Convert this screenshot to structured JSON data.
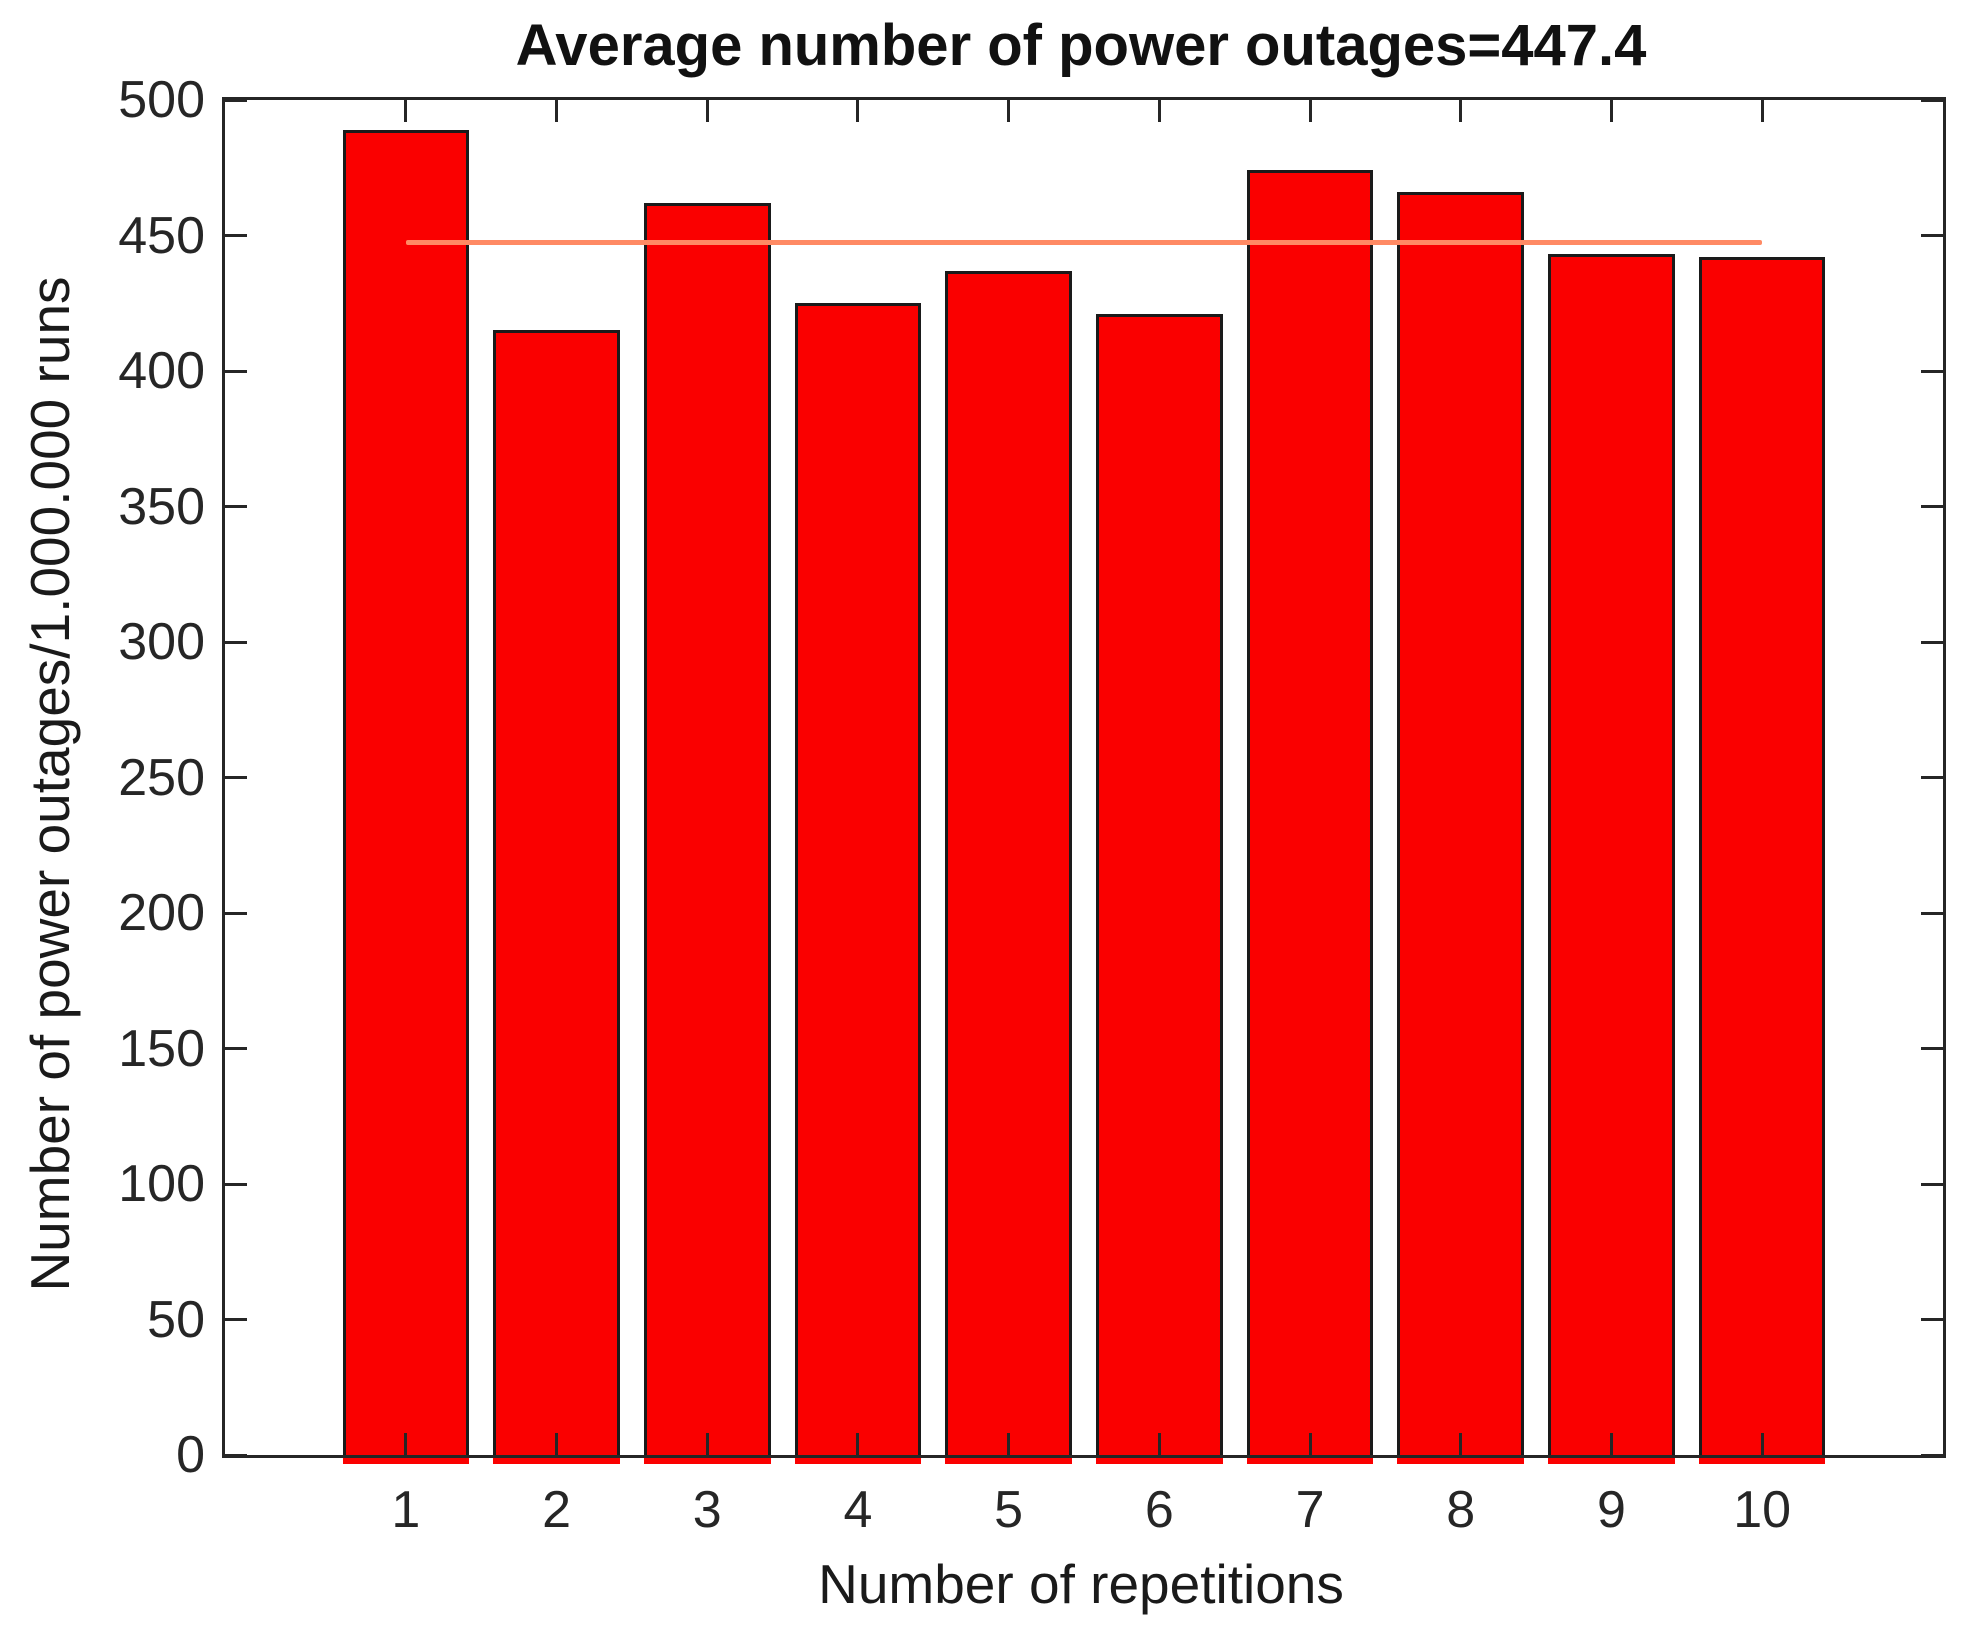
{
  "chart_data": {
    "type": "bar",
    "title": "Average number of power outages=447.4",
    "xlabel": "Number of repetitions",
    "ylabel": "Number of power outages/1.000.000 runs",
    "categories": [
      "1",
      "2",
      "3",
      "4",
      "5",
      "6",
      "7",
      "8",
      "9",
      "10"
    ],
    "values": [
      489,
      415,
      462,
      425,
      437,
      421,
      474,
      466,
      443,
      442
    ],
    "average": 447.4,
    "average_line": {
      "y": 447.4,
      "x_start_category": "1",
      "x_end_category": "10",
      "color": "#ff8a64"
    },
    "ylim": [
      0,
      500
    ],
    "yticks": [
      0,
      50,
      100,
      150,
      200,
      250,
      300,
      350,
      400,
      450,
      500
    ],
    "xlim_units": [
      -0.2,
      11.2
    ],
    "bar_width_units": 0.84,
    "bar_color": "#fa0000",
    "bar_edge_color": "#1a1a1a",
    "axis_color": "#262626",
    "background": "#ffffff",
    "grid": false,
    "legend": null,
    "tick_direction": "in",
    "box": true
  }
}
